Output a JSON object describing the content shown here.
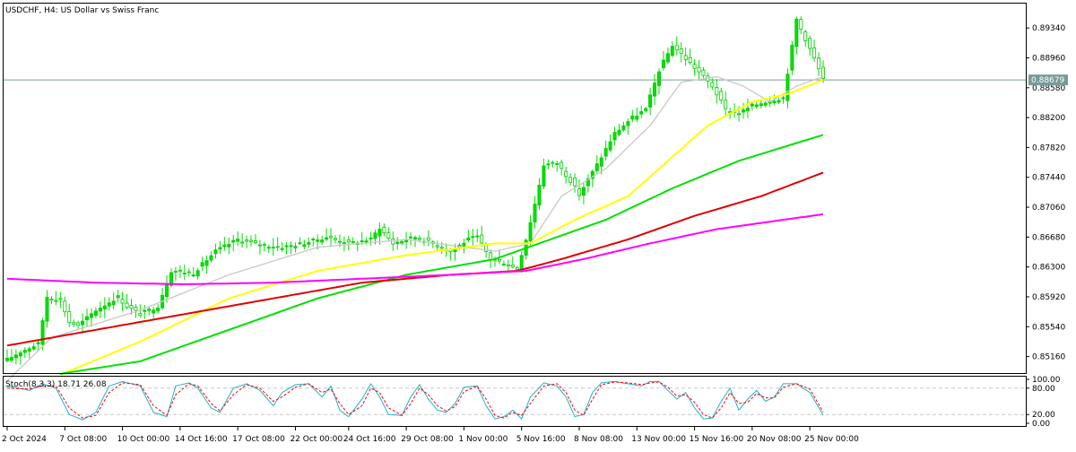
{
  "header": {
    "title": "USDCHF, H4:  US Dollar vs Swiss Franc"
  },
  "colors": {
    "background": "#ffffff",
    "axis": "#000000",
    "grid": "#c8c8c8",
    "bull_candle": "#00e000",
    "bear_candle": "#00c800",
    "ma_gray": "#c8c8c8",
    "ma_yellow": "#ffff00",
    "ma_green": "#00e000",
    "ma_red": "#e00000",
    "ma_magenta": "#ff00ff",
    "bid_line": "#7a9a9a",
    "stoch_main": "#20b2c8",
    "stoch_signal": "#ff0000"
  },
  "chart_data": [
    {
      "type": "candlestick",
      "title": "USDCHF, H4:  US Dollar vs Swiss Franc",
      "ylim": [
        0.8495,
        0.8965
      ],
      "y_ticks": [
        "0.89340",
        "0.88960",
        "0.88580",
        "0.88200",
        "0.87820",
        "0.87440",
        "0.87060",
        "0.86680",
        "0.86300",
        "0.85920",
        "0.85540",
        "0.85160"
      ],
      "current_price": "0.88679",
      "x_tick_labels": [
        "2 Oct 2024",
        "7 Oct 08:00",
        "10 Oct 00:00",
        "14 Oct 16:00",
        "17 Oct 08:00",
        "22 Oct 00:00",
        "24 Oct 16:00",
        "29 Oct 08:00",
        "1 Nov 00:00",
        "5 Nov 16:00",
        "8 Nov 08:00",
        "13 Nov 00:00",
        "15 Nov 16:00",
        "20 Nov 08:00",
        "25 Nov 00:00"
      ],
      "bars": 185,
      "close_path": [
        [
          0,
          0.8512
        ],
        [
          3,
          0.8522
        ],
        [
          7,
          0.8532
        ],
        [
          9,
          0.8592
        ],
        [
          12,
          0.8588
        ],
        [
          14,
          0.856
        ],
        [
          16,
          0.8555
        ],
        [
          20,
          0.8575
        ],
        [
          25,
          0.8592
        ],
        [
          27,
          0.858
        ],
        [
          30,
          0.857
        ],
        [
          34,
          0.858
        ],
        [
          37,
          0.8625
        ],
        [
          42,
          0.8622
        ],
        [
          47,
          0.865
        ],
        [
          52,
          0.8665
        ],
        [
          57,
          0.8658
        ],
        [
          62,
          0.8655
        ],
        [
          67,
          0.866
        ],
        [
          72,
          0.8668
        ],
        [
          77,
          0.866
        ],
        [
          82,
          0.8665
        ],
        [
          84,
          0.868
        ],
        [
          87,
          0.866
        ],
        [
          92,
          0.8668
        ],
        [
          96,
          0.866
        ],
        [
          100,
          0.865
        ],
        [
          104,
          0.8665
        ],
        [
          106,
          0.8668
        ],
        [
          109,
          0.864
        ],
        [
          112,
          0.8635
        ],
        [
          115,
          0.8628
        ],
        [
          117,
          0.8665
        ],
        [
          119,
          0.871
        ],
        [
          121,
          0.876
        ],
        [
          124,
          0.8762
        ],
        [
          127,
          0.874
        ],
        [
          129,
          0.8722
        ],
        [
          133,
          0.876
        ],
        [
          137,
          0.88
        ],
        [
          141,
          0.882
        ],
        [
          144,
          0.883
        ],
        [
          147,
          0.888
        ],
        [
          150,
          0.8912
        ],
        [
          153,
          0.8895
        ],
        [
          156,
          0.8878
        ],
        [
          159,
          0.886
        ],
        [
          162,
          0.883
        ],
        [
          165,
          0.8825
        ],
        [
          168,
          0.8835
        ],
        [
          172,
          0.8842
        ],
        [
          175,
          0.8845
        ],
        [
          177,
          0.891
        ],
        [
          178,
          0.8945
        ],
        [
          180,
          0.892
        ],
        [
          182,
          0.8895
        ],
        [
          184,
          0.8868
        ]
      ],
      "series": [
        {
          "color": "#c8c8c8",
          "path": [
            [
              0,
              0.8485
            ],
            [
              10,
              0.854
            ],
            [
              30,
              0.8575
            ],
            [
              50,
              0.862
            ],
            [
              70,
              0.8655
            ],
            [
              90,
              0.8665
            ],
            [
              110,
              0.865
            ],
            [
              118,
              0.866
            ],
            [
              125,
              0.872
            ],
            [
              135,
              0.8755
            ],
            [
              145,
              0.881
            ],
            [
              152,
              0.8865
            ],
            [
              160,
              0.8872
            ],
            [
              166,
              0.886
            ],
            [
              172,
              0.884
            ],
            [
              178,
              0.886
            ],
            [
              184,
              0.8872
            ]
          ]
        },
        {
          "color": "#ffff00",
          "path": [
            [
              12,
              0.8493
            ],
            [
              30,
              0.8535
            ],
            [
              50,
              0.859
            ],
            [
              70,
              0.8625
            ],
            [
              90,
              0.8645
            ],
            [
              110,
              0.866
            ],
            [
              118,
              0.866
            ],
            [
              128,
              0.869
            ],
            [
              140,
              0.872
            ],
            [
              150,
              0.877
            ],
            [
              158,
              0.881
            ],
            [
              168,
              0.884
            ],
            [
              176,
              0.885
            ],
            [
              184,
              0.8868
            ]
          ]
        },
        {
          "color": "#00e000",
          "path": [
            [
              12,
              0.8494
            ],
            [
              30,
              0.851
            ],
            [
              50,
              0.855
            ],
            [
              70,
              0.859
            ],
            [
              90,
              0.862
            ],
            [
              110,
              0.864
            ],
            [
              120,
              0.866
            ],
            [
              135,
              0.869
            ],
            [
              150,
              0.873
            ],
            [
              165,
              0.8765
            ],
            [
              184,
              0.8798
            ]
          ]
        },
        {
          "color": "#e00000",
          "path": [
            [
              0,
              0.853
            ],
            [
              20,
              0.855
            ],
            [
              40,
              0.857
            ],
            [
              60,
              0.859
            ],
            [
              80,
              0.861
            ],
            [
              100,
              0.862
            ],
            [
              115,
              0.8625
            ],
            [
              125,
              0.864
            ],
            [
              140,
              0.8665
            ],
            [
              155,
              0.8695
            ],
            [
              170,
              0.872
            ],
            [
              184,
              0.875
            ]
          ]
        },
        {
          "color": "#ff00ff",
          "path": [
            [
              0,
              0.8615
            ],
            [
              20,
              0.861
            ],
            [
              40,
              0.8608
            ],
            [
              60,
              0.861
            ],
            [
              80,
              0.8615
            ],
            [
              100,
              0.862
            ],
            [
              117,
              0.8625
            ],
            [
              130,
              0.864
            ],
            [
              145,
              0.866
            ],
            [
              160,
              0.8678
            ],
            [
              175,
              0.869
            ],
            [
              184,
              0.8697
            ]
          ]
        }
      ]
    },
    {
      "type": "line",
      "title": "Stoch(8,3,3) 18.71 26.08",
      "ylim": [
        0,
        100
      ],
      "y_ticks": [
        "100.00",
        "80.00",
        "20.00",
        "0.00"
      ],
      "series": [
        {
          "name": "main",
          "color": "#20b2c8",
          "path": [
            [
              0,
              85
            ],
            [
              5,
              75
            ],
            [
              8,
              90
            ],
            [
              11,
              80
            ],
            [
              14,
              20
            ],
            [
              17,
              8
            ],
            [
              20,
              25
            ],
            [
              23,
              85
            ],
            [
              26,
              95
            ],
            [
              30,
              85
            ],
            [
              33,
              25
            ],
            [
              36,
              15
            ],
            [
              38,
              85
            ],
            [
              41,
              92
            ],
            [
              43,
              80
            ],
            [
              46,
              35
            ],
            [
              48,
              25
            ],
            [
              51,
              80
            ],
            [
              54,
              90
            ],
            [
              57,
              75
            ],
            [
              60,
              40
            ],
            [
              62,
              70
            ],
            [
              65,
              88
            ],
            [
              68,
              90
            ],
            [
              71,
              60
            ],
            [
              73,
              85
            ],
            [
              75,
              30
            ],
            [
              77,
              15
            ],
            [
              80,
              55
            ],
            [
              82,
              90
            ],
            [
              84,
              60
            ],
            [
              86,
              20
            ],
            [
              89,
              18
            ],
            [
              91,
              60
            ],
            [
              93,
              88
            ],
            [
              95,
              55
            ],
            [
              97,
              30
            ],
            [
              99,
              25
            ],
            [
              101,
              45
            ],
            [
              103,
              82
            ],
            [
              106,
              85
            ],
            [
              108,
              40
            ],
            [
              110,
              10
            ],
            [
              112,
              15
            ],
            [
              114,
              30
            ],
            [
              116,
              10
            ],
            [
              118,
              60
            ],
            [
              121,
              92
            ],
            [
              124,
              85
            ],
            [
              126,
              60
            ],
            [
              128,
              15
            ],
            [
              130,
              20
            ],
            [
              132,
              70
            ],
            [
              134,
              92
            ],
            [
              137,
              95
            ],
            [
              140,
              90
            ],
            [
              143,
              85
            ],
            [
              145,
              95
            ],
            [
              147,
              95
            ],
            [
              149,
              75
            ],
            [
              151,
              55
            ],
            [
              153,
              70
            ],
            [
              155,
              35
            ],
            [
              157,
              10
            ],
            [
              159,
              12
            ],
            [
              161,
              50
            ],
            [
              163,
              80
            ],
            [
              165,
              30
            ],
            [
              167,
              55
            ],
            [
              169,
              75
            ],
            [
              171,
              50
            ],
            [
              173,
              60
            ],
            [
              175,
              90
            ],
            [
              178,
              90
            ],
            [
              181,
              70
            ],
            [
              184,
              19
            ]
          ]
        },
        {
          "name": "signal",
          "color": "#ff0000",
          "path": [
            [
              0,
              80
            ],
            [
              5,
              78
            ],
            [
              8,
              85
            ],
            [
              11,
              85
            ],
            [
              14,
              35
            ],
            [
              17,
              12
            ],
            [
              20,
              18
            ],
            [
              23,
              70
            ],
            [
              26,
              92
            ],
            [
              30,
              88
            ],
            [
              33,
              40
            ],
            [
              36,
              18
            ],
            [
              38,
              65
            ],
            [
              41,
              90
            ],
            [
              43,
              85
            ],
            [
              46,
              45
            ],
            [
              48,
              28
            ],
            [
              51,
              65
            ],
            [
              54,
              88
            ],
            [
              57,
              80
            ],
            [
              60,
              50
            ],
            [
              62,
              60
            ],
            [
              65,
              82
            ],
            [
              68,
              90
            ],
            [
              71,
              70
            ],
            [
              73,
              78
            ],
            [
              75,
              45
            ],
            [
              77,
              20
            ],
            [
              80,
              40
            ],
            [
              82,
              80
            ],
            [
              84,
              70
            ],
            [
              86,
              35
            ],
            [
              89,
              18
            ],
            [
              91,
              45
            ],
            [
              93,
              80
            ],
            [
              95,
              65
            ],
            [
              97,
              40
            ],
            [
              99,
              28
            ],
            [
              101,
              38
            ],
            [
              103,
              72
            ],
            [
              106,
              85
            ],
            [
              108,
              55
            ],
            [
              110,
              18
            ],
            [
              112,
              12
            ],
            [
              114,
              25
            ],
            [
              116,
              18
            ],
            [
              118,
              45
            ],
            [
              121,
              85
            ],
            [
              124,
              90
            ],
            [
              126,
              70
            ],
            [
              128,
              30
            ],
            [
              130,
              18
            ],
            [
              132,
              55
            ],
            [
              134,
              88
            ],
            [
              137,
              94
            ],
            [
              140,
              92
            ],
            [
              143,
              88
            ],
            [
              145,
              92
            ],
            [
              147,
              94
            ],
            [
              149,
              82
            ],
            [
              151,
              62
            ],
            [
              153,
              65
            ],
            [
              155,
              48
            ],
            [
              157,
              20
            ],
            [
              159,
              12
            ],
            [
              161,
              35
            ],
            [
              163,
              70
            ],
            [
              165,
              45
            ],
            [
              167,
              48
            ],
            [
              169,
              68
            ],
            [
              171,
              58
            ],
            [
              173,
              58
            ],
            [
              175,
              82
            ],
            [
              178,
              90
            ],
            [
              181,
              78
            ],
            [
              184,
              26
            ]
          ]
        }
      ]
    }
  ]
}
